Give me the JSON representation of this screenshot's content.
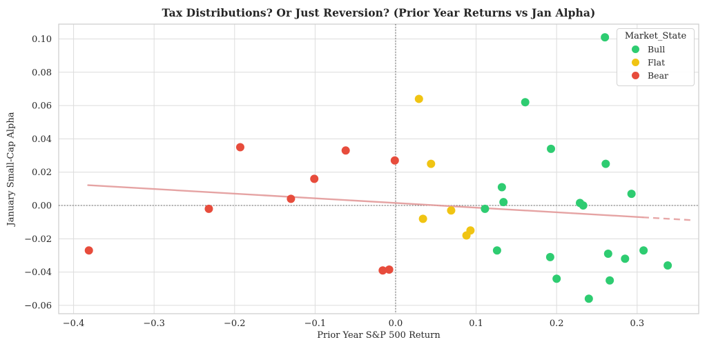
{
  "chart_data": {
    "type": "scatter",
    "title": "Tax Distributions? Or Just Reversion? (Prior Year Returns vs Jan Alpha)",
    "xlabel": "Prior Year S&P 500 Return",
    "ylabel": "January Small-Cap Alpha",
    "xlim": [
      -0.4185,
      0.3765
    ],
    "ylim": [
      -0.065,
      0.1089
    ],
    "grid": true,
    "grid_color": "#dcdcdc",
    "spine_color": "#cccccc",
    "text_color": "#262626",
    "xticks": [
      -0.4,
      -0.3,
      -0.2,
      -0.1,
      0.0,
      0.1,
      0.2,
      0.3
    ],
    "xtick_labels": [
      "−0.4",
      "−0.3",
      "−0.2",
      "−0.1",
      "0.0",
      "0.1",
      "0.2",
      "0.3"
    ],
    "yticks": [
      -0.06,
      -0.04,
      -0.02,
      0.0,
      0.02,
      0.04,
      0.06,
      0.08,
      0.1
    ],
    "ytick_labels": [
      "−0.06",
      "−0.04",
      "−0.02",
      "0.00",
      "0.02",
      "0.04",
      "0.06",
      "0.08",
      "0.10"
    ],
    "reference_lines": {
      "hline_y": 0,
      "vline_x": 0,
      "color": "#4d4d4d",
      "style": "dotted"
    },
    "trendline": {
      "slope": -0.028,
      "intercept": 0.0015,
      "x_start": -0.382,
      "solid_until": 0.307,
      "x_end": 0.368,
      "color": "#e39a9a",
      "width": 2.4
    },
    "legend": {
      "title": "Market_State",
      "position": "upper right",
      "entries": [
        {
          "label": "Bull",
          "color": "#2ecc71"
        },
        {
          "label": "Flat",
          "color": "#f0c413"
        },
        {
          "label": "Bear",
          "color": "#e74c3c"
        }
      ]
    },
    "marker_radius": 6,
    "series": [
      {
        "name": "Bull",
        "color": "#2ecc71",
        "points": [
          [
            0.26,
            0.101
          ],
          [
            0.161,
            0.062
          ],
          [
            0.193,
            0.034
          ],
          [
            0.261,
            0.025
          ],
          [
            0.132,
            0.011
          ],
          [
            0.293,
            0.007
          ],
          [
            0.134,
            0.002
          ],
          [
            0.229,
            0.0015
          ],
          [
            0.233,
            0.0
          ],
          [
            0.111,
            -0.002
          ],
          [
            0.126,
            -0.027
          ],
          [
            0.308,
            -0.027
          ],
          [
            0.264,
            -0.029
          ],
          [
            0.192,
            -0.031
          ],
          [
            0.285,
            -0.032
          ],
          [
            0.338,
            -0.036
          ],
          [
            0.2,
            -0.044
          ],
          [
            0.266,
            -0.045
          ],
          [
            0.24,
            -0.056
          ]
        ]
      },
      {
        "name": "Flat",
        "color": "#f0c413",
        "points": [
          [
            0.029,
            0.064
          ],
          [
            0.044,
            0.025
          ],
          [
            0.069,
            -0.003
          ],
          [
            0.034,
            -0.008
          ],
          [
            0.093,
            -0.015
          ],
          [
            0.088,
            -0.018
          ]
        ]
      },
      {
        "name": "Bear",
        "color": "#e74c3c",
        "points": [
          [
            -0.193,
            0.035
          ],
          [
            -0.062,
            0.033
          ],
          [
            -0.001,
            0.027
          ],
          [
            -0.101,
            0.016
          ],
          [
            -0.13,
            0.004
          ],
          [
            -0.232,
            -0.002
          ],
          [
            -0.381,
            -0.027
          ],
          [
            -0.016,
            -0.039
          ],
          [
            -0.008,
            -0.0385
          ]
        ]
      }
    ]
  }
}
